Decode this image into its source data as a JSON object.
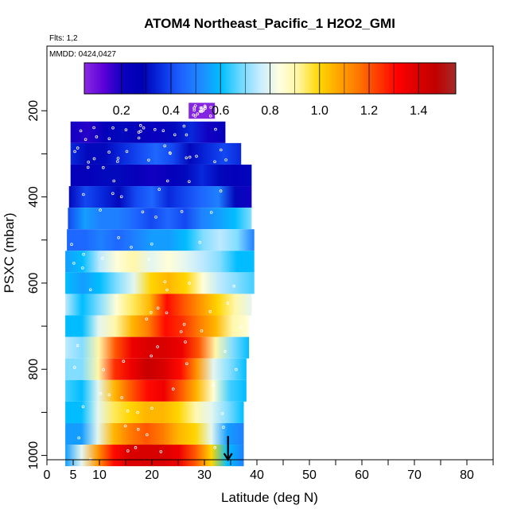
{
  "chart_data": {
    "type": "heatmap",
    "title": "ATOM4 Northeast_Pacific_1 H2O2_GMI",
    "flights_label": "Flts: 1,2",
    "dates_label": "MMDD: 0424,0427",
    "xlabel": "Latitude (deg N)",
    "ylabel": "PSXC (mbar)",
    "xlim": [
      0,
      85
    ],
    "ylim": [
      1010,
      50
    ],
    "y_reversed": true,
    "x_ticks": [
      0,
      5,
      10,
      20,
      30,
      40,
      50,
      60,
      70,
      80
    ],
    "x_minor_ticks": [
      15,
      25,
      35,
      45,
      55,
      65,
      75,
      85
    ],
    "y_ticks": [
      200,
      400,
      600,
      800,
      1000
    ],
    "y_minor_ticks": [
      300,
      500,
      700,
      900
    ],
    "colorbar": {
      "min": 0.05,
      "max": 1.55,
      "ticks": [
        0.2,
        0.4,
        0.6,
        0.8,
        1.0,
        1.2,
        1.4
      ],
      "tick_labels": [
        "0.2",
        "0.4",
        "0.6",
        "0.8",
        "1.0",
        "1.2",
        "1.4"
      ],
      "colors": [
        "#8a2be2",
        "#5a00d8",
        "#0a00c0",
        "#0000b4",
        "#0a32e6",
        "#1e64ff",
        "#1e8cff",
        "#00bfff",
        "#6ed8ff",
        "#c8ecff",
        "#ffffe0",
        "#fff59a",
        "#ffd700",
        "#ffa500",
        "#ff7800",
        "#ff3c00",
        "#ff0000",
        "#dc0000",
        "#c00000",
        "#a52a2a"
      ]
    },
    "bands": [
      {
        "p": 200,
        "lat": [
          27,
          32
        ],
        "values": [
          0.06,
          0.06
        ]
      },
      {
        "p": 250,
        "lat": [
          4.5,
          34
        ],
        "values": [
          0.2,
          0.18,
          0.25,
          0.3,
          0.25,
          0.22,
          0.3,
          0.35,
          0.2,
          0.25
        ]
      },
      {
        "p": 300,
        "lat": [
          4.5,
          37
        ],
        "values": [
          0.35,
          0.3,
          0.3,
          0.35,
          0.4,
          0.45,
          0.4,
          0.3,
          0.35,
          0.4,
          0.35
        ]
      },
      {
        "p": 350,
        "lat": [
          4.5,
          39
        ],
        "values": [
          0.25,
          0.25,
          0.3,
          0.3,
          0.25,
          0.2,
          0.25,
          0.3,
          0.35,
          0.3,
          0.25,
          0.3
        ]
      },
      {
        "p": 400,
        "lat": [
          4.2,
          39
        ],
        "values": [
          0.3,
          0.4,
          0.35,
          0.3,
          0.4,
          0.45,
          0.35,
          0.4,
          0.45,
          0.5,
          0.3,
          0.2
        ]
      },
      {
        "p": 450,
        "lat": [
          4,
          39
        ],
        "values": [
          0.4,
          0.55,
          0.5,
          0.5,
          0.45,
          0.4,
          0.45,
          0.4,
          0.5,
          0.55,
          0.6,
          0.7
        ]
      },
      {
        "p": 500,
        "lat": [
          3.8,
          39.5
        ],
        "values": [
          0.45,
          0.45,
          0.5,
          0.45,
          0.5,
          0.55,
          0.55,
          0.6,
          0.7,
          0.75,
          0.7,
          0.5
        ]
      },
      {
        "p": 550,
        "lat": [
          3.5,
          39.5
        ],
        "values": [
          0.55,
          0.6,
          0.75,
          0.85,
          0.9,
          0.8,
          0.85,
          0.8,
          0.75,
          0.7,
          0.6,
          0.6
        ]
      },
      {
        "p": 600,
        "lat": [
          3.5,
          39.5
        ],
        "values": [
          0.6,
          0.55,
          0.6,
          0.7,
          0.8,
          1.0,
          1.05,
          1.0,
          0.85,
          0.75,
          0.7,
          0.65
        ]
      },
      {
        "p": 650,
        "lat": [
          3.5,
          39
        ],
        "values": [
          0.75,
          0.6,
          0.7,
          0.85,
          0.95,
          1.05,
          1.3,
          1.2,
          1.1,
          1.0,
          0.9,
          0.8
        ]
      },
      {
        "p": 700,
        "lat": [
          3.5,
          38.5
        ],
        "values": [
          0.6,
          0.6,
          0.8,
          0.9,
          1.05,
          1.15,
          1.3,
          1.25,
          1.15,
          1.05,
          0.9,
          0.85
        ]
      },
      {
        "p": 750,
        "lat": [
          3.5,
          38.5
        ],
        "values": [
          0.75,
          0.7,
          0.9,
          1.2,
          1.35,
          1.4,
          1.4,
          1.35,
          1.2,
          0.9,
          0.7,
          0.6
        ]
      },
      {
        "p": 800,
        "lat": [
          3.5,
          38
        ],
        "values": [
          0.7,
          0.7,
          0.9,
          1.25,
          1.35,
          1.45,
          1.4,
          1.3,
          1.1,
          0.8,
          0.7,
          0.6
        ]
      },
      {
        "p": 850,
        "lat": [
          3.5,
          38
        ],
        "values": [
          0.65,
          0.6,
          0.8,
          1.05,
          1.2,
          1.3,
          1.35,
          1.2,
          1.05,
          0.85,
          0.65,
          0.6
        ]
      },
      {
        "p": 900,
        "lat": [
          3.5,
          37.5
        ],
        "values": [
          0.6,
          0.6,
          0.8,
          0.95,
          1.0,
          1.05,
          1.05,
          1.0,
          0.9,
          0.8,
          0.7,
          0.6
        ]
      },
      {
        "p": 950,
        "lat": [
          3.5,
          37.5
        ],
        "values": [
          0.55,
          0.55,
          0.8,
          1.05,
          1.15,
          1.2,
          1.15,
          1.05,
          1.0,
          0.8,
          0.55,
          0.5
        ]
      },
      {
        "p": 1000,
        "lat": [
          3.5,
          37.5
        ],
        "values": [
          0.55,
          0.8,
          1.1,
          1.3,
          1.4,
          1.4,
          1.4,
          1.35,
          1.2,
          1.0,
          0.6,
          0.5
        ]
      }
    ],
    "arrow": {
      "lat": 34.5,
      "p_start": 955,
      "p_end": 1010
    }
  }
}
